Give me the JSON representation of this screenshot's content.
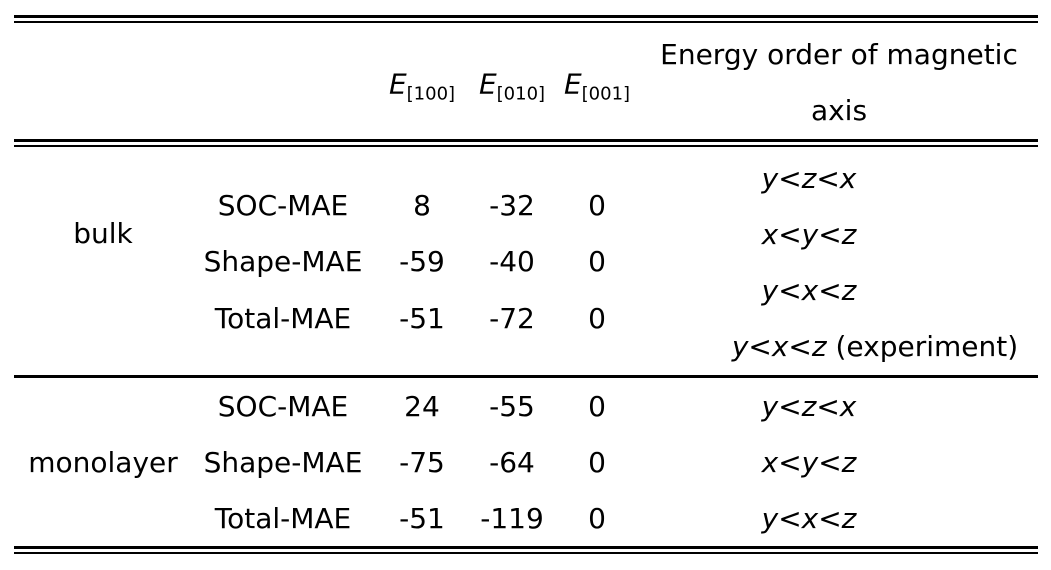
{
  "header": {
    "e100": {
      "symbol": "E",
      "sub": "[100]"
    },
    "e010": {
      "symbol": "E",
      "sub": "[010]"
    },
    "e001": {
      "symbol": "E",
      "sub": "[001]"
    },
    "order_line1": "Energy order of magnetic",
    "order_line2": "axis"
  },
  "groups": [
    {
      "name": "bulk",
      "rows": [
        {
          "method": "SOC-MAE",
          "e100": "8",
          "e010": "-32",
          "e001": "0"
        },
        {
          "method": "Shape-MAE",
          "e100": "-59",
          "e010": "-40",
          "e001": "0"
        },
        {
          "method": "Total-MAE",
          "e100": "-51",
          "e010": "-72",
          "e001": "0"
        }
      ],
      "orders": [
        {
          "text": "y<z<x",
          "note": ""
        },
        {
          "text": "x<y<z",
          "note": ""
        },
        {
          "text": "y<x<z",
          "note": ""
        },
        {
          "text": "y<x<z",
          "note": " (experiment)"
        }
      ]
    },
    {
      "name": "monolayer",
      "rows": [
        {
          "method": "SOC-MAE",
          "e100": "24",
          "e010": "-55",
          "e001": "0"
        },
        {
          "method": "Shape-MAE",
          "e100": "-75",
          "e010": "-64",
          "e001": "0"
        },
        {
          "method": "Total-MAE",
          "e100": "-51",
          "e010": "-119",
          "e001": "0"
        }
      ],
      "orders": [
        {
          "text": "y<z<x",
          "note": ""
        },
        {
          "text": "x<y<z",
          "note": ""
        },
        {
          "text": "y<x<z",
          "note": ""
        }
      ]
    }
  ]
}
